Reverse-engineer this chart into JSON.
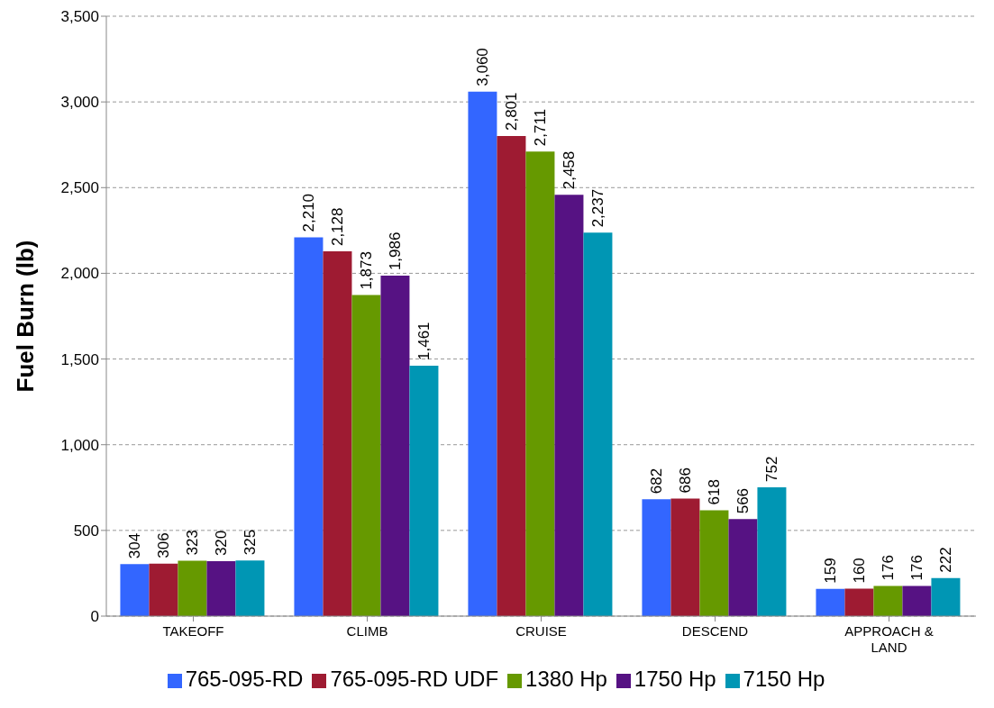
{
  "chart_data": {
    "type": "bar",
    "ylabel": "Fuel Burn (lb)",
    "categories": [
      "TAKEOFF",
      "CLIMB",
      "CRUISE",
      "DESCEND",
      "APPROACH & LAND"
    ],
    "series": [
      {
        "name": "765-095-RD",
        "color": "#3366ff",
        "values": [
          304,
          2210,
          3060,
          682,
          159
        ],
        "value_labels": [
          "304",
          "2,210",
          "3,060",
          "682",
          "159"
        ]
      },
      {
        "name": "765-095-RD UDF",
        "color": "#9e1b32",
        "values": [
          306,
          2128,
          2801,
          686,
          160
        ],
        "value_labels": [
          "306",
          "2,128",
          "2,801",
          "686",
          "160"
        ]
      },
      {
        "name": "1380 Hp",
        "color": "#669900",
        "values": [
          323,
          1873,
          2711,
          618,
          176
        ],
        "value_labels": [
          "323",
          "1,873",
          "2,711",
          "618",
          "176"
        ]
      },
      {
        "name": "1750 Hp",
        "color": "#561283",
        "values": [
          320,
          1986,
          2458,
          566,
          176
        ],
        "value_labels": [
          "320",
          "1,986",
          "2,458",
          "566",
          "176"
        ]
      },
      {
        "name": "7150 Hp",
        "color": "#0096b4",
        "values": [
          325,
          1461,
          2237,
          752,
          222
        ],
        "value_labels": [
          "325",
          "1,461",
          "2,237",
          "752",
          "222"
        ]
      }
    ],
    "ylim": [
      0,
      3500
    ],
    "yticks": [
      0,
      500,
      {
        "value": 1000,
        "label": "1,000"
      },
      {
        "value": 1500,
        "label": "1,500"
      },
      {
        "value": 2000,
        "label": "2,000"
      },
      {
        "value": 2500,
        "label": "2,500"
      },
      {
        "value": 3000,
        "label": "3,000"
      },
      {
        "value": 3500,
        "label": "3,500"
      }
    ],
    "grid": "y",
    "legend": "bottom"
  }
}
